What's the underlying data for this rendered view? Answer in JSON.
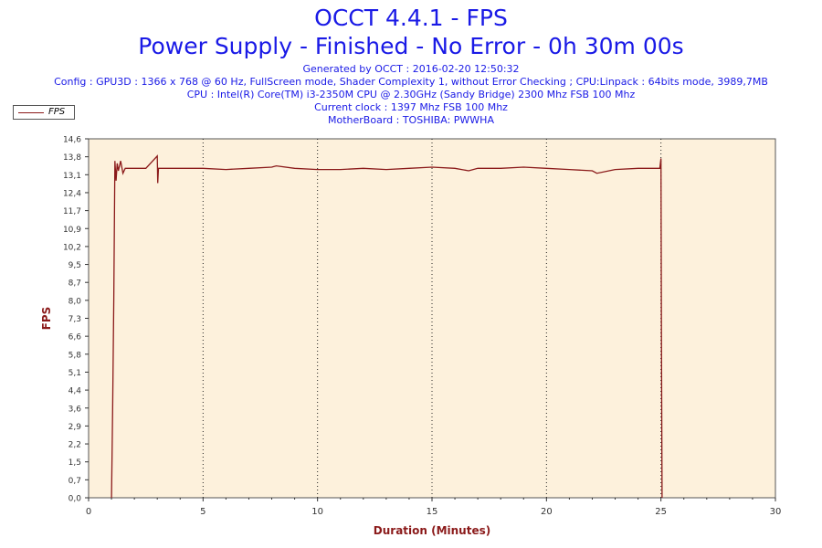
{
  "header": {
    "title_line1": "OCCT 4.4.1 - FPS",
    "title_line2": "Power Supply - Finished - No Error - 0h 30m 00s",
    "generated": "Generated by OCCT : 2016-02-20 12:50:32",
    "config": "Config : GPU3D : 1366 x 768 @ 60 Hz, FullScreen mode, Shader Complexity 1, without Error Checking ; CPU:Linpack : 64bits mode, 3989,7MB",
    "cpu": "CPU : Intel(R) Core(TM) i3-2350M CPU @ 2.30GHz (Sandy Bridge) 2300 Mhz FSB 100 Mhz",
    "clock": "Current clock : 1397 Mhz FSB 100 Mhz",
    "motherboard": "MotherBoard : TOSHIBA: PWWHA"
  },
  "colors": {
    "title": "#1a1ae6",
    "series": "#8b1a1a",
    "plot_background": "#fdf1dc",
    "axis_label": "#8b1a1a"
  },
  "chart_data": {
    "type": "line",
    "xlabel": "Duration (Minutes)",
    "ylabel": "FPS",
    "xlim": [
      0,
      30
    ],
    "ylim": [
      0,
      14.6
    ],
    "x_ticks": [
      "0",
      "5",
      "10",
      "15",
      "20",
      "25",
      "30"
    ],
    "y_ticks": [
      "0,0",
      "0,7",
      "1,5",
      "2,2",
      "2,9",
      "3,6",
      "4,4",
      "5,1",
      "5,8",
      "6,6",
      "7,3",
      "8,0",
      "8,7",
      "9,5",
      "10,2",
      "10,9",
      "11,7",
      "12,4",
      "13,1",
      "13,8",
      "14,6"
    ],
    "grid": "vertical dotted lines at x ticks",
    "legend_position": "top-left",
    "series": [
      {
        "name": "FPS",
        "x": [
          1.0,
          1.05,
          1.1,
          1.15,
          1.2,
          1.25,
          1.3,
          1.4,
          1.5,
          1.6,
          2.0,
          2.5,
          3.0,
          3.02,
          3.05,
          4.0,
          5.0,
          6.0,
          7.0,
          8.0,
          8.2,
          9.0,
          10.0,
          11.0,
          12.0,
          13.0,
          14.0,
          15.0,
          16.0,
          16.6,
          17.0,
          18.0,
          19.0,
          20.0,
          21.0,
          22.0,
          22.2,
          23.0,
          24.0,
          24.95,
          25.0,
          25.02,
          25.05
        ],
        "y": [
          0.0,
          3.5,
          8.1,
          13.7,
          12.9,
          13.6,
          13.3,
          13.7,
          13.2,
          13.4,
          13.4,
          13.4,
          13.9,
          12.8,
          13.4,
          13.4,
          13.4,
          13.35,
          13.4,
          13.45,
          13.5,
          13.4,
          13.35,
          13.35,
          13.4,
          13.35,
          13.4,
          13.45,
          13.4,
          13.3,
          13.4,
          13.4,
          13.45,
          13.4,
          13.35,
          13.3,
          13.2,
          13.35,
          13.4,
          13.4,
          13.8,
          6.7,
          0.0
        ]
      }
    ]
  }
}
